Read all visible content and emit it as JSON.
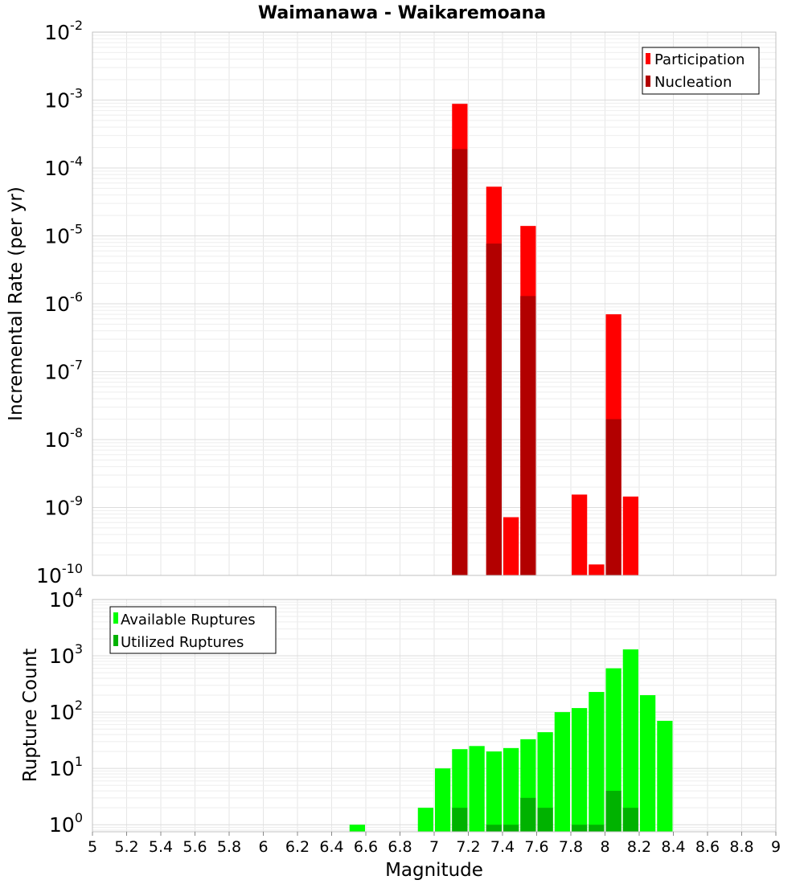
{
  "chart_data": [
    {
      "type": "bar",
      "title": "Waimanawa - Waikaremoana",
      "ylabel": "Incremental Rate (per yr)",
      "xlabel": "",
      "yscale": "log",
      "xlim": [
        5,
        9
      ],
      "ylim": [
        1e-10,
        0.01
      ],
      "y_tick_exponents": [
        "-10",
        "-9",
        "-8",
        "-7",
        "-6",
        "-5",
        "-4",
        "-3",
        "-2"
      ],
      "y_tick_base": "10",
      "bin_width": 0.1,
      "legend_position": "top-right",
      "series": [
        {
          "name": "Participation",
          "color": "#ff0000",
          "points": [
            {
              "x": 7.15,
              "y": 0.00088
            },
            {
              "x": 7.35,
              "y": 5.3e-05
            },
            {
              "x": 7.45,
              "y": 7.2e-10
            },
            {
              "x": 7.55,
              "y": 1.4e-05
            },
            {
              "x": 7.85,
              "y": 1.55e-09
            },
            {
              "x": 7.95,
              "y": 1.45e-10
            },
            {
              "x": 8.05,
              "y": 7e-07
            },
            {
              "x": 8.15,
              "y": 1.45e-09
            }
          ]
        },
        {
          "name": "Nucleation",
          "color": "#b20000",
          "points": [
            {
              "x": 7.15,
              "y": 0.00019
            },
            {
              "x": 7.35,
              "y": 7.7e-06
            },
            {
              "x": 7.55,
              "y": 1.3e-06
            },
            {
              "x": 8.05,
              "y": 2e-08
            }
          ]
        }
      ]
    },
    {
      "type": "bar",
      "title": "",
      "ylabel": "Rupture Count",
      "xlabel": "Magnitude",
      "yscale": "log",
      "xlim": [
        5,
        9
      ],
      "ylim": [
        0.75,
        10000
      ],
      "y_tick_exponents": [
        "0",
        "1",
        "2",
        "3",
        "4"
      ],
      "y_tick_base": "10",
      "x_ticks": [
        "5",
        "5.2",
        "5.4",
        "5.6",
        "5.8",
        "6",
        "6.2",
        "6.4",
        "6.6",
        "6.8",
        "7",
        "7.2",
        "7.4",
        "7.6",
        "7.8",
        "8",
        "8.2",
        "8.4",
        "8.6",
        "8.8",
        "9"
      ],
      "bin_width": 0.1,
      "legend_position": "top-left",
      "series": [
        {
          "name": "Available Ruptures",
          "color": "#00ff00",
          "points": [
            {
              "x": 6.55,
              "y": 1
            },
            {
              "x": 6.95,
              "y": 2
            },
            {
              "x": 7.05,
              "y": 10
            },
            {
              "x": 7.15,
              "y": 22
            },
            {
              "x": 7.25,
              "y": 25
            },
            {
              "x": 7.35,
              "y": 20
            },
            {
              "x": 7.45,
              "y": 23
            },
            {
              "x": 7.55,
              "y": 33
            },
            {
              "x": 7.65,
              "y": 44
            },
            {
              "x": 7.75,
              "y": 100
            },
            {
              "x": 7.85,
              "y": 118
            },
            {
              "x": 7.95,
              "y": 228
            },
            {
              "x": 8.05,
              "y": 600
            },
            {
              "x": 8.15,
              "y": 1300
            },
            {
              "x": 8.25,
              "y": 200
            },
            {
              "x": 8.35,
              "y": 70
            }
          ]
        },
        {
          "name": "Utilized Ruptures",
          "color": "#00b200",
          "points": [
            {
              "x": 7.15,
              "y": 2
            },
            {
              "x": 7.35,
              "y": 1
            },
            {
              "x": 7.45,
              "y": 1
            },
            {
              "x": 7.55,
              "y": 3
            },
            {
              "x": 7.65,
              "y": 2
            },
            {
              "x": 7.85,
              "y": 1
            },
            {
              "x": 7.95,
              "y": 1
            },
            {
              "x": 8.05,
              "y": 4
            },
            {
              "x": 8.15,
              "y": 2
            }
          ]
        }
      ]
    }
  ]
}
